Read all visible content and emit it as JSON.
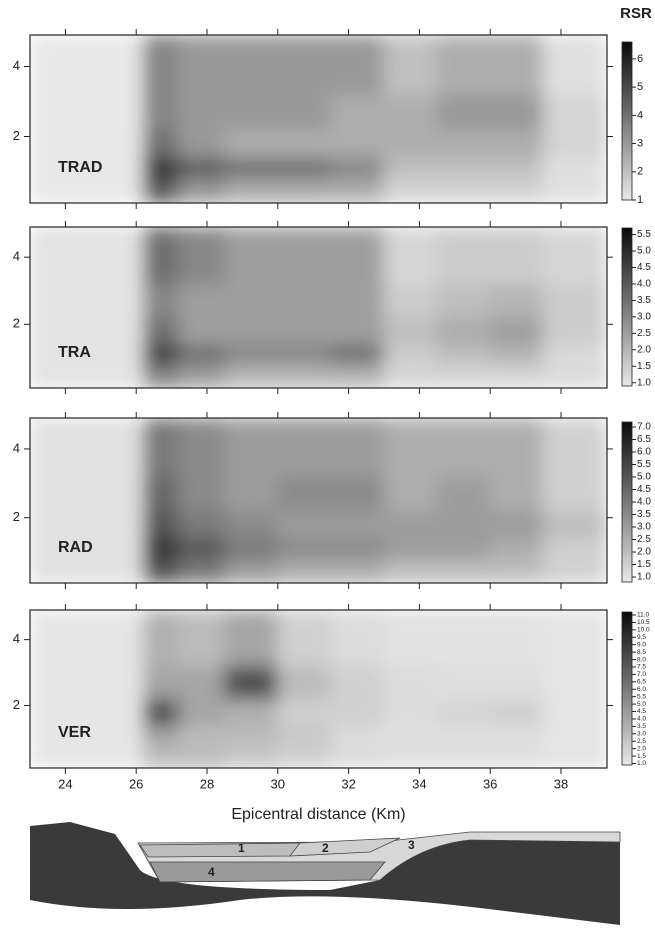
{
  "chart_data": [
    {
      "type": "heatmap",
      "label": "TRAD",
      "colorbar_title": "RSR",
      "show_xtick_labels": false,
      "x_bins": [
        23,
        26.2,
        27.2,
        28.5,
        30,
        31.5,
        33,
        34.5,
        36,
        37.5,
        39.3
      ],
      "y_bins": [
        0.1,
        0.8,
        1.4,
        2.2,
        3.2,
        4.9
      ],
      "values": [
        [
          1,
          4.5,
          3,
          2.5,
          2.5,
          2.5,
          1.5,
          1.5,
          1.5,
          1.2
        ],
        [
          1,
          5.5,
          4.5,
          4,
          4,
          3.5,
          2,
          2,
          2,
          1.2
        ],
        [
          1,
          4,
          3,
          2.5,
          2.5,
          2.5,
          2.5,
          2.5,
          2.5,
          1.5
        ],
        [
          1,
          3.5,
          3,
          3,
          3,
          2.5,
          2.5,
          3,
          3,
          1.5
        ],
        [
          1,
          3.5,
          3,
          3,
          3,
          3,
          2,
          2.5,
          2.5,
          1.2
        ]
      ],
      "xlim": [
        23,
        39.3
      ],
      "ylim": [
        0.1,
        4.9
      ],
      "xticks": [
        24,
        26,
        28,
        30,
        32,
        34,
        36,
        38
      ],
      "yticks": [
        2,
        4
      ],
      "colorbar_lim": [
        1,
        6.6
      ],
      "colorbar_ticks": [
        1,
        2,
        3,
        4,
        5,
        6
      ]
    },
    {
      "type": "heatmap",
      "label": "TRA",
      "show_xtick_labels": false,
      "x_bins": [
        23,
        26.2,
        27.2,
        28.5,
        30,
        31.5,
        33,
        34.5,
        36,
        37.5,
        39.3
      ],
      "y_bins": [
        0.1,
        0.8,
        1.4,
        2.2,
        3.2,
        4.9
      ],
      "values": [
        [
          1,
          3,
          2.5,
          2,
          2,
          2,
          1.3,
          1.3,
          1.3,
          1.2
        ],
        [
          1,
          4.5,
          3.5,
          3,
          3,
          3.5,
          1.5,
          1.8,
          2,
          1.2
        ],
        [
          1,
          3.5,
          2.5,
          2.5,
          2.5,
          2.5,
          1.8,
          2.2,
          2.5,
          1.5
        ],
        [
          1,
          3,
          2.5,
          2.5,
          2.5,
          2.5,
          1.5,
          1.8,
          2,
          1.5
        ],
        [
          1,
          3.5,
          3,
          2.5,
          2.5,
          2.5,
          1.3,
          1.5,
          1.5,
          1.3
        ]
      ],
      "xlim": [
        23,
        39.3
      ],
      "ylim": [
        0.1,
        4.9
      ],
      "xticks": [
        24,
        26,
        28,
        30,
        32,
        34,
        36,
        38
      ],
      "yticks": [
        2,
        4
      ],
      "colorbar_lim": [
        0.9,
        5.7
      ],
      "colorbar_ticks": [
        {
          "value": 1,
          "label": "1.0"
        },
        1.5,
        {
          "value": 2,
          "label": "2.0"
        },
        2.5,
        {
          "value": 3,
          "label": "3.0"
        },
        3.5,
        {
          "value": 4,
          "label": "4.0"
        },
        4.5,
        {
          "value": 5,
          "label": "5.0"
        },
        5.5
      ]
    },
    {
      "type": "heatmap",
      "label": "RAD",
      "show_xtick_labels": false,
      "x_bins": [
        23,
        26.2,
        27.2,
        28.5,
        30,
        31.5,
        33,
        34.5,
        36,
        37.5,
        39.3
      ],
      "y_bins": [
        0.1,
        0.8,
        1.4,
        2.2,
        3.2,
        4.9
      ],
      "values": [
        [
          1,
          5,
          4,
          3,
          2.5,
          2.5,
          2,
          2,
          2,
          1.5
        ],
        [
          1,
          6,
          5,
          4,
          3.5,
          3.5,
          3,
          3,
          2.5,
          1.5
        ],
        [
          1,
          5,
          4,
          3.5,
          3,
          3,
          3,
          3,
          3,
          2
        ],
        [
          1,
          4.5,
          3.5,
          3,
          3.5,
          3.5,
          2.5,
          3,
          2.5,
          1.5
        ],
        [
          1,
          4,
          3.5,
          3,
          3,
          3,
          2.5,
          2.5,
          2.5,
          1.5
        ]
      ],
      "xlim": [
        23,
        39.3
      ],
      "ylim": [
        0.1,
        4.9
      ],
      "xticks": [
        24,
        26,
        28,
        30,
        32,
        34,
        36,
        38
      ],
      "yticks": [
        2,
        4
      ],
      "colorbar_lim": [
        0.8,
        7.2
      ],
      "colorbar_ticks": [
        {
          "value": 1,
          "label": "1.0"
        },
        1.5,
        {
          "value": 2,
          "label": "2.0"
        },
        2.5,
        {
          "value": 3,
          "label": "3.0"
        },
        3.5,
        {
          "value": 4,
          "label": "4.0"
        },
        4.5,
        {
          "value": 5,
          "label": "5.0"
        },
        5.5,
        {
          "value": 6,
          "label": "6.0"
        },
        6.5,
        {
          "value": 7,
          "label": "7.0"
        }
      ]
    },
    {
      "type": "heatmap",
      "label": "VER",
      "show_xtick_labels": true,
      "xlabel": "Epicentral distance (Km)",
      "x_bins": [
        23,
        26.2,
        27.2,
        28.5,
        30,
        31.5,
        33,
        34.5,
        36,
        37.5,
        39.3
      ],
      "y_bins": [
        0.1,
        0.8,
        1.4,
        2.2,
        3.2,
        4.9
      ],
      "values": [
        [
          1,
          3,
          3,
          2.5,
          2,
          1.5,
          1.3,
          1.3,
          1.3,
          1.1
        ],
        [
          1,
          4,
          3,
          3,
          2.5,
          1.5,
          1.3,
          1.3,
          1.3,
          1.1
        ],
        [
          1,
          8,
          4,
          3.5,
          2,
          2,
          1.5,
          1.8,
          2,
          1.1
        ],
        [
          1,
          4,
          4,
          8,
          3,
          2,
          1.5,
          1.3,
          1.3,
          1.1
        ],
        [
          1,
          3.5,
          3,
          4,
          2,
          1.5,
          1.2,
          1.2,
          1.2,
          1.1
        ]
      ],
      "xlim": [
        23,
        39.3
      ],
      "ylim": [
        0.1,
        4.9
      ],
      "xticks": [
        24,
        26,
        28,
        30,
        32,
        34,
        36,
        38
      ],
      "yticks": [
        2,
        4
      ],
      "colorbar_lim": [
        0.9,
        11.2
      ],
      "colorbar_ticks": [
        {
          "value": 1,
          "label": "1.0"
        },
        1.5,
        {
          "value": 2,
          "label": "2.0"
        },
        2.5,
        {
          "value": 3,
          "label": "3.0"
        },
        3.5,
        {
          "value": 4,
          "label": "4.0"
        },
        4.5,
        {
          "value": 5,
          "label": "5.0"
        },
        5.5,
        {
          "value": 6,
          "label": "6.0"
        },
        6.5,
        {
          "value": 7,
          "label": "7.0"
        },
        7.5,
        {
          "value": 8,
          "label": "8.0"
        },
        8.5,
        {
          "value": 9,
          "label": "9.0"
        },
        9.5,
        {
          "value": 10,
          "label": "10.0"
        },
        10.5,
        {
          "value": 11,
          "label": "11.0"
        }
      ]
    }
  ],
  "section": {
    "labels": [
      "1",
      "2",
      "3",
      "4"
    ]
  }
}
